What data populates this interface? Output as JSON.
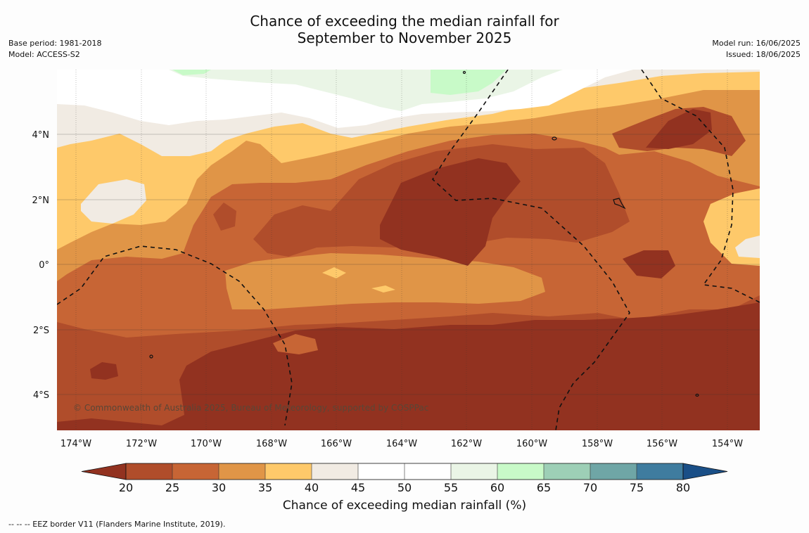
{
  "title": {
    "line1": "Chance of exceeding the median rainfall for",
    "line2": "September to November 2025"
  },
  "meta_left": {
    "base_period": "Base period: 1981-2018",
    "model": "Model: ACCESS-S2"
  },
  "meta_right": {
    "model_run": "Model run: 16/06/2025",
    "issued": "Issued: 18/06/2025"
  },
  "map": {
    "lon_ticks": [
      "174°W",
      "172°W",
      "170°W",
      "168°W",
      "166°W",
      "164°W",
      "162°W",
      "160°W",
      "158°W",
      "156°W",
      "154°W"
    ],
    "lat_ticks": [
      "4°N",
      "2°N",
      "0°",
      "2°S",
      "4°S"
    ],
    "copyright": "© Commonwealth of Australia 2025, Bureau of Meteorology, supported by COSPPac"
  },
  "colorbar": {
    "label": "Chance of exceeding median rainfall (%)",
    "ticks": [
      "20",
      "25",
      "30",
      "35",
      "40",
      "45",
      "50",
      "55",
      "60",
      "65",
      "70",
      "75",
      "80"
    ],
    "colors": {
      "below20": "#923220",
      "b20_25": "#b04d2b",
      "b25_30": "#c76535",
      "b30_35": "#e09547",
      "b35_40": "#fec96a",
      "b40_45": "#f1ebe3",
      "b45_50": "#ffffff",
      "b50_55": "#ffffff",
      "b55_60": "#eaf5e6",
      "b60_65": "#c8fac8",
      "b65_70": "#9dcfb6",
      "b70_75": "#6fa6a6",
      "b75_80": "#3f7c9f",
      "above80": "#1a4f87"
    }
  },
  "footnote": "--  --  -- EEZ border V11 (Flanders Marine Institute, 2019)."
}
